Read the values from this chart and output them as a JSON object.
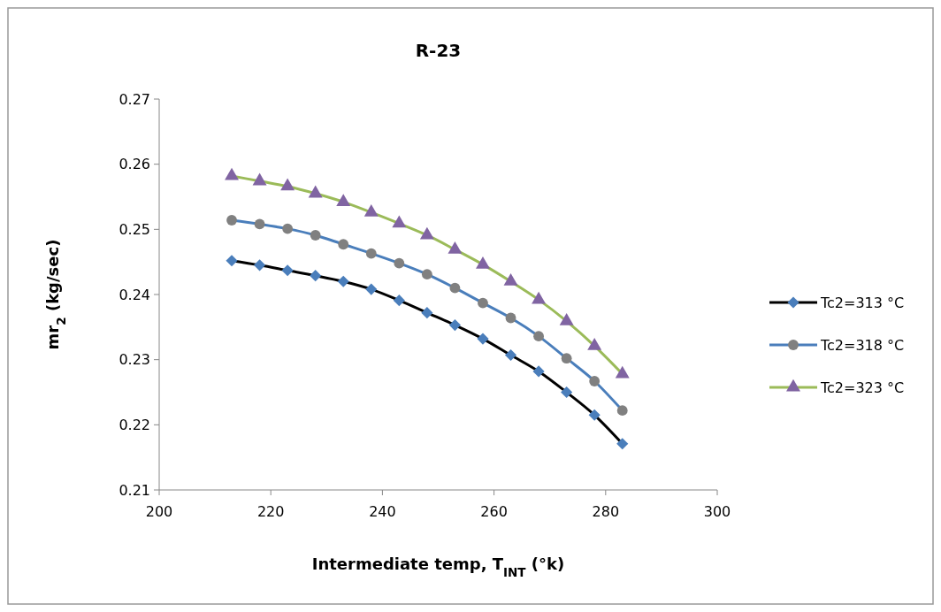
{
  "chart_data": {
    "type": "line",
    "title": "R-23",
    "xlabel": "Intermediate temp, T$_{INT}$ (°k)",
    "ylabel": "mr$_{2}$ (kg/sec)",
    "x": [
      213,
      218,
      223,
      228,
      233,
      238,
      243,
      248,
      253,
      258,
      263,
      268,
      273,
      278,
      283
    ],
    "xlim": [
      200,
      300
    ],
    "xticks": [
      200,
      220,
      240,
      260,
      280,
      300
    ],
    "ylim": [
      0.21,
      0.27
    ],
    "yticks": [
      0.21,
      0.22,
      0.23,
      0.24,
      0.25,
      0.26,
      0.27
    ],
    "grid": false,
    "legend": "right",
    "line_style": "solid",
    "series": [
      {
        "name": "Tc2=313 °C",
        "color": "#000000",
        "marker": "diamond",
        "colors": [
          "#4a7ebb",
          "#4a7ebb",
          "#4a7ebb",
          "#4a7ebb",
          "#4a7ebb",
          "#4a7ebb",
          "#4a7ebb",
          "#4a7ebb",
          "#4a7ebb",
          "#4a7ebb",
          "#4a7ebb",
          "#4a7ebb",
          "#4a7ebb",
          "#4a7ebb",
          "#4a7ebb"
        ],
        "values": [
          0.2452,
          0.2445,
          0.2437,
          0.2429,
          0.242,
          0.2408,
          0.2391,
          0.2372,
          0.2353,
          0.2332,
          0.2307,
          0.2282,
          0.225,
          0.2215,
          0.2171
        ]
      },
      {
        "name": "Tc2=318 °C",
        "color": "#4a7ebb",
        "marker": "circle",
        "colors": [
          "#808080",
          "#808080",
          "#808080",
          "#808080",
          "#808080",
          "#808080",
          "#808080",
          "#808080",
          "#808080",
          "#808080",
          "#808080",
          "#808080",
          "#808080",
          "#808080",
          "#808080"
        ],
        "values": [
          0.2514,
          0.2508,
          0.2501,
          0.2491,
          0.2477,
          0.2463,
          0.2448,
          0.2431,
          0.241,
          0.2387,
          0.2364,
          0.2336,
          0.2302,
          0.2267,
          0.2222
        ]
      },
      {
        "name": "Tc2=323 °C",
        "color": "#9bbb59",
        "marker": "triangle",
        "colors": [
          "#8064a2",
          "#8064a2",
          "#8064a2",
          "#8064a2",
          "#8064a2",
          "#8064a2",
          "#8064a2",
          "#8064a2",
          "#8064a2",
          "#8064a2",
          "#8064a2",
          "#8064a2",
          "#8064a2",
          "#8064a2",
          "#8064a2"
        ],
        "values": [
          0.2582,
          0.2574,
          0.2566,
          0.2555,
          0.2542,
          0.2526,
          0.2509,
          0.2491,
          0.2469,
          0.2446,
          0.242,
          0.2392,
          0.2359,
          0.2321,
          0.2278
        ]
      }
    ]
  }
}
